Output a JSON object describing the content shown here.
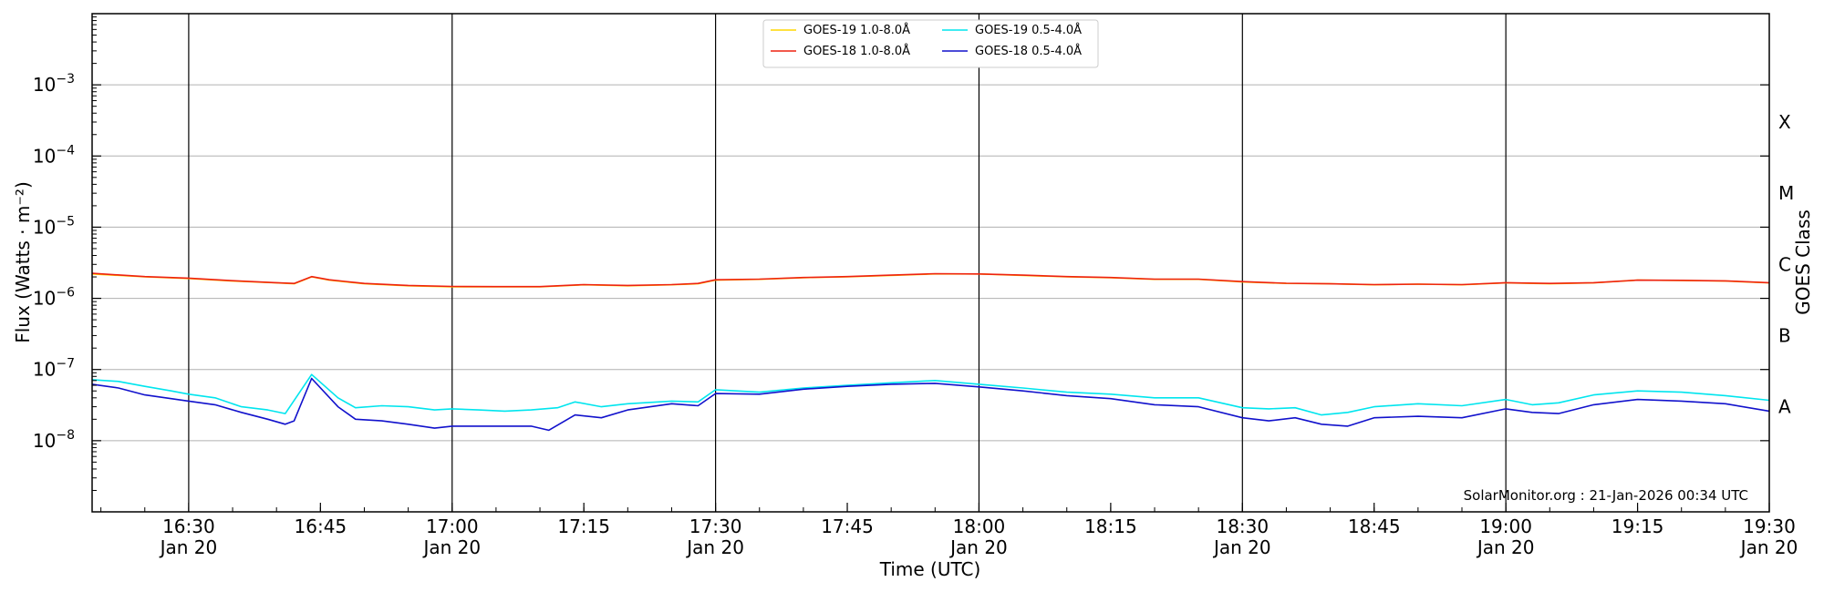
{
  "chart_data": {
    "type": "line",
    "title": "",
    "xlabel": "Time (UTC)",
    "ylabel": "Flux (Watts · m⁻²)",
    "y2label": "GOES Class",
    "yscale": "log",
    "xlim": [
      "2026-01-20T16:19",
      "2026-01-20T19:30"
    ],
    "ylim": [
      1e-09,
      0.01
    ],
    "grid": "horizontal",
    "legend_position": "top-center",
    "watermark": "SolarMonitor.org : 21-Jan-2026 00:34 UTC",
    "x_ticks": [
      {
        "time": "16:30",
        "date": "Jan 20"
      },
      {
        "time": "16:45",
        "date": ""
      },
      {
        "time": "17:00",
        "date": "Jan 20"
      },
      {
        "time": "17:15",
        "date": ""
      },
      {
        "time": "17:30",
        "date": "Jan 20"
      },
      {
        "time": "17:45",
        "date": ""
      },
      {
        "time": "18:00",
        "date": "Jan 20"
      },
      {
        "time": "18:15",
        "date": ""
      },
      {
        "time": "18:30",
        "date": "Jan 20"
      },
      {
        "time": "18:45",
        "date": ""
      },
      {
        "time": "19:00",
        "date": "Jan 20"
      },
      {
        "time": "19:15",
        "date": ""
      },
      {
        "time": "19:30",
        "date": "Jan 20"
      }
    ],
    "vertical_lines": [
      "16:30",
      "17:00",
      "17:30",
      "18:00",
      "18:30",
      "19:00"
    ],
    "y_ticks": [
      {
        "base": "10",
        "exp": "−8"
      },
      {
        "base": "10",
        "exp": "−7"
      },
      {
        "base": "10",
        "exp": "−6"
      },
      {
        "base": "10",
        "exp": "−5"
      },
      {
        "base": "10",
        "exp": "−4"
      },
      {
        "base": "10",
        "exp": "−3"
      }
    ],
    "classes": [
      {
        "label": "A",
        "at": "3e-8"
      },
      {
        "label": "B",
        "at": "3e-7"
      },
      {
        "label": "C",
        "at": "3e-6"
      },
      {
        "label": "M",
        "at": "3e-5"
      },
      {
        "label": "X",
        "at": "3e-4"
      }
    ],
    "series": [
      {
        "name": "GOES-19 1.0-8.0Å",
        "color": "#ffd700",
        "points": [
          [
            "16:19",
            2.2e-06
          ],
          [
            "16:25",
            2e-06
          ],
          [
            "16:30",
            1.9e-06
          ],
          [
            "16:35",
            1.75e-06
          ],
          [
            "16:40",
            1.65e-06
          ],
          [
            "16:42",
            1.6e-06
          ],
          [
            "16:44",
            2e-06
          ],
          [
            "16:46",
            1.8e-06
          ],
          [
            "16:50",
            1.6e-06
          ],
          [
            "16:55",
            1.5e-06
          ],
          [
            "17:00",
            1.45e-06
          ],
          [
            "17:05",
            1.45e-06
          ],
          [
            "17:10",
            1.45e-06
          ],
          [
            "17:15",
            1.55e-06
          ],
          [
            "17:20",
            1.5e-06
          ],
          [
            "17:25",
            1.55e-06
          ],
          [
            "17:28",
            1.6e-06
          ],
          [
            "17:30",
            1.8e-06
          ],
          [
            "17:35",
            1.85e-06
          ],
          [
            "17:40",
            1.95e-06
          ],
          [
            "17:45",
            2e-06
          ],
          [
            "17:50",
            2.1e-06
          ],
          [
            "17:55",
            2.2e-06
          ],
          [
            "18:00",
            2.2e-06
          ],
          [
            "18:05",
            2.1e-06
          ],
          [
            "18:10",
            2e-06
          ],
          [
            "18:15",
            1.95e-06
          ],
          [
            "18:20",
            1.85e-06
          ],
          [
            "18:25",
            1.85e-06
          ],
          [
            "18:30",
            1.7e-06
          ],
          [
            "18:35",
            1.62e-06
          ],
          [
            "18:40",
            1.6e-06
          ],
          [
            "18:45",
            1.55e-06
          ],
          [
            "18:50",
            1.58e-06
          ],
          [
            "18:55",
            1.55e-06
          ],
          [
            "19:00",
            1.65e-06
          ],
          [
            "19:05",
            1.6e-06
          ],
          [
            "19:10",
            1.65e-06
          ],
          [
            "19:15",
            1.8e-06
          ],
          [
            "19:20",
            1.78e-06
          ],
          [
            "19:25",
            1.75e-06
          ],
          [
            "19:30",
            1.65e-06
          ]
        ]
      },
      {
        "name": "GOES-18 1.0-8.0Å",
        "color": "#ee2211",
        "points": [
          [
            "16:19",
            2.25e-06
          ],
          [
            "16:25",
            2.02e-06
          ],
          [
            "16:30",
            1.92e-06
          ],
          [
            "16:35",
            1.77e-06
          ],
          [
            "16:40",
            1.66e-06
          ],
          [
            "16:42",
            1.62e-06
          ],
          [
            "16:44",
            2.02e-06
          ],
          [
            "16:46",
            1.82e-06
          ],
          [
            "16:50",
            1.62e-06
          ],
          [
            "16:55",
            1.52e-06
          ],
          [
            "17:00",
            1.47e-06
          ],
          [
            "17:05",
            1.46e-06
          ],
          [
            "17:10",
            1.46e-06
          ],
          [
            "17:15",
            1.56e-06
          ],
          [
            "17:20",
            1.52e-06
          ],
          [
            "17:25",
            1.56e-06
          ],
          [
            "17:28",
            1.62e-06
          ],
          [
            "17:30",
            1.82e-06
          ],
          [
            "17:35",
            1.86e-06
          ],
          [
            "17:40",
            1.96e-06
          ],
          [
            "17:45",
            2.02e-06
          ],
          [
            "17:50",
            2.12e-06
          ],
          [
            "17:55",
            2.22e-06
          ],
          [
            "18:00",
            2.2e-06
          ],
          [
            "18:05",
            2.12e-06
          ],
          [
            "18:10",
            2.02e-06
          ],
          [
            "18:15",
            1.96e-06
          ],
          [
            "18:20",
            1.86e-06
          ],
          [
            "18:25",
            1.86e-06
          ],
          [
            "18:30",
            1.72e-06
          ],
          [
            "18:35",
            1.63e-06
          ],
          [
            "18:40",
            1.6e-06
          ],
          [
            "18:45",
            1.56e-06
          ],
          [
            "18:50",
            1.58e-06
          ],
          [
            "18:55",
            1.56e-06
          ],
          [
            "19:00",
            1.66e-06
          ],
          [
            "19:05",
            1.62e-06
          ],
          [
            "19:10",
            1.66e-06
          ],
          [
            "19:15",
            1.8e-06
          ],
          [
            "19:20",
            1.79e-06
          ],
          [
            "19:25",
            1.76e-06
          ],
          [
            "19:30",
            1.66e-06
          ]
        ]
      },
      {
        "name": "GOES-19 0.5-4.0Å",
        "color": "#00e5ee",
        "points": [
          [
            "16:19",
            7.2e-08
          ],
          [
            "16:22",
            6.8e-08
          ],
          [
            "16:25",
            5.8e-08
          ],
          [
            "16:28",
            5e-08
          ],
          [
            "16:30",
            4.5e-08
          ],
          [
            "16:33",
            4e-08
          ],
          [
            "16:36",
            3e-08
          ],
          [
            "16:39",
            2.7e-08
          ],
          [
            "16:41",
            2.4e-08
          ],
          [
            "16:44",
            8.5e-08
          ],
          [
            "16:47",
            4e-08
          ],
          [
            "16:49",
            2.9e-08
          ],
          [
            "16:52",
            3.1e-08
          ],
          [
            "16:55",
            3e-08
          ],
          [
            "16:58",
            2.7e-08
          ],
          [
            "17:00",
            2.8e-08
          ],
          [
            "17:03",
            2.7e-08
          ],
          [
            "17:06",
            2.6e-08
          ],
          [
            "17:09",
            2.7e-08
          ],
          [
            "17:12",
            2.9e-08
          ],
          [
            "17:14",
            3.5e-08
          ],
          [
            "17:17",
            3e-08
          ],
          [
            "17:20",
            3.3e-08
          ],
          [
            "17:25",
            3.6e-08
          ],
          [
            "17:28",
            3.5e-08
          ],
          [
            "17:30",
            5.2e-08
          ],
          [
            "17:35",
            4.8e-08
          ],
          [
            "17:40",
            5.5e-08
          ],
          [
            "17:45",
            6e-08
          ],
          [
            "17:50",
            6.5e-08
          ],
          [
            "17:55",
            7e-08
          ],
          [
            "18:00",
            6.2e-08
          ],
          [
            "18:05",
            5.5e-08
          ],
          [
            "18:10",
            4.8e-08
          ],
          [
            "18:15",
            4.5e-08
          ],
          [
            "18:20",
            4e-08
          ],
          [
            "18:25",
            4e-08
          ],
          [
            "18:30",
            2.9e-08
          ],
          [
            "18:33",
            2.8e-08
          ],
          [
            "18:36",
            2.9e-08
          ],
          [
            "18:39",
            2.3e-08
          ],
          [
            "18:42",
            2.5e-08
          ],
          [
            "18:45",
            3e-08
          ],
          [
            "18:50",
            3.3e-08
          ],
          [
            "18:55",
            3.1e-08
          ],
          [
            "19:00",
            3.8e-08
          ],
          [
            "19:03",
            3.2e-08
          ],
          [
            "19:06",
            3.4e-08
          ],
          [
            "19:10",
            4.4e-08
          ],
          [
            "19:15",
            5e-08
          ],
          [
            "19:20",
            4.8e-08
          ],
          [
            "19:25",
            4.3e-08
          ],
          [
            "19:30",
            3.7e-08
          ]
        ]
      },
      {
        "name": "GOES-18 0.5-4.0Å",
        "color": "#1111cc",
        "points": [
          [
            "16:19",
            6.2e-08
          ],
          [
            "16:22",
            5.5e-08
          ],
          [
            "16:25",
            4.4e-08
          ],
          [
            "16:28",
            3.9e-08
          ],
          [
            "16:30",
            3.6e-08
          ],
          [
            "16:33",
            3.2e-08
          ],
          [
            "16:36",
            2.5e-08
          ],
          [
            "16:39",
            2e-08
          ],
          [
            "16:41",
            1.7e-08
          ],
          [
            "16:42",
            1.9e-08
          ],
          [
            "16:44",
            7.5e-08
          ],
          [
            "16:47",
            3e-08
          ],
          [
            "16:49",
            2e-08
          ],
          [
            "16:52",
            1.9e-08
          ],
          [
            "16:55",
            1.7e-08
          ],
          [
            "16:58",
            1.5e-08
          ],
          [
            "17:00",
            1.6e-08
          ],
          [
            "17:03",
            1.6e-08
          ],
          [
            "17:06",
            1.6e-08
          ],
          [
            "17:09",
            1.6e-08
          ],
          [
            "17:11",
            1.4e-08
          ],
          [
            "17:14",
            2.3e-08
          ],
          [
            "17:17",
            2.1e-08
          ],
          [
            "17:20",
            2.7e-08
          ],
          [
            "17:25",
            3.3e-08
          ],
          [
            "17:28",
            3.1e-08
          ],
          [
            "17:30",
            4.6e-08
          ],
          [
            "17:35",
            4.5e-08
          ],
          [
            "17:40",
            5.3e-08
          ],
          [
            "17:45",
            5.8e-08
          ],
          [
            "17:50",
            6.2e-08
          ],
          [
            "17:55",
            6.4e-08
          ],
          [
            "18:00",
            5.7e-08
          ],
          [
            "18:05",
            5e-08
          ],
          [
            "18:10",
            4.3e-08
          ],
          [
            "18:15",
            3.9e-08
          ],
          [
            "18:20",
            3.2e-08
          ],
          [
            "18:25",
            3e-08
          ],
          [
            "18:30",
            2.1e-08
          ],
          [
            "18:33",
            1.9e-08
          ],
          [
            "18:36",
            2.1e-08
          ],
          [
            "18:39",
            1.7e-08
          ],
          [
            "18:42",
            1.6e-08
          ],
          [
            "18:45",
            2.1e-08
          ],
          [
            "18:50",
            2.2e-08
          ],
          [
            "18:55",
            2.1e-08
          ],
          [
            "19:00",
            2.8e-08
          ],
          [
            "19:03",
            2.5e-08
          ],
          [
            "19:06",
            2.4e-08
          ],
          [
            "19:10",
            3.2e-08
          ],
          [
            "19:15",
            3.8e-08
          ],
          [
            "19:20",
            3.6e-08
          ],
          [
            "19:25",
            3.3e-08
          ],
          [
            "19:30",
            2.6e-08
          ]
        ]
      }
    ]
  }
}
